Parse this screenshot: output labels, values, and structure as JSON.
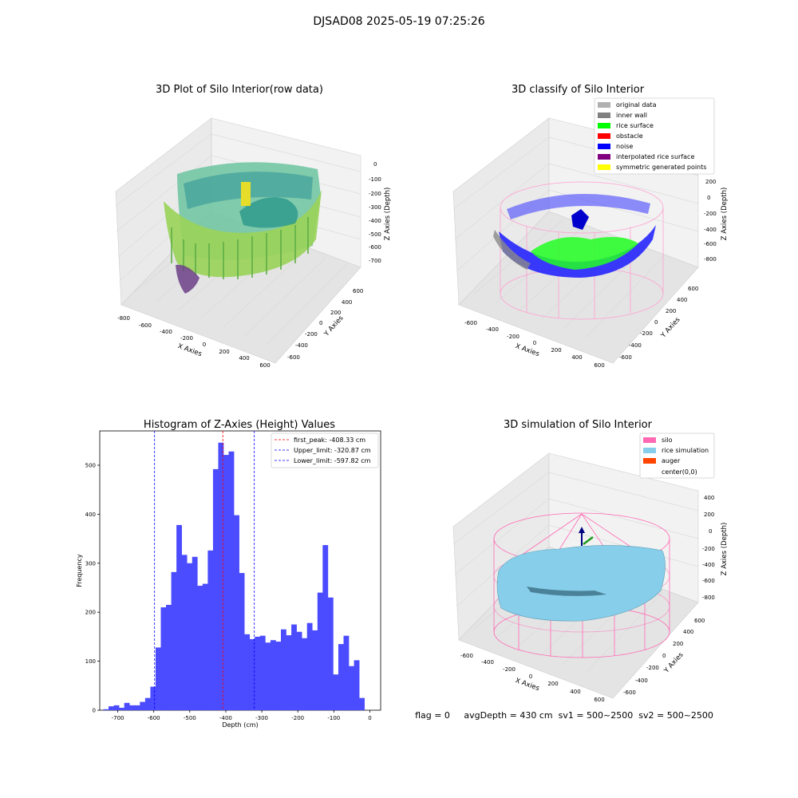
{
  "suptitle": "DJSAD08 2025-05-19 07:25:26",
  "status_line": "flag = 0     avgDepth = 430 cm  sv1 = 500~2500  sv2 = 500~2500",
  "colors": {
    "histogram_bar": "#4b4bff",
    "first_peak_line": "#ff0000",
    "limit_lines": "#0000ff",
    "silo_wire": "#ff69b4",
    "rice_simulation": "#87ceeb"
  },
  "panels": {
    "raw": {
      "title": "3D Plot of Silo Interior(row data)",
      "x_label": "X Axies",
      "y_label": "Y Axies",
      "z_label": "Z Axies (Depth)",
      "x_ticks": [
        "-800",
        "-600",
        "-400",
        "-200",
        "0",
        "200",
        "400",
        "600"
      ],
      "y_ticks": [
        "600",
        "400",
        "200",
        "0",
        "-200",
        "-400",
        "-600"
      ],
      "z_ticks": [
        "0",
        "-100",
        "-200",
        "-300",
        "-400",
        "-500",
        "-600",
        "-700"
      ],
      "colormap": "viridis"
    },
    "classify": {
      "title": "3D classify of Silo Interior",
      "x_label": "X Axies",
      "y_label": "Y Axies",
      "z_label": "Z Axies (Depth)",
      "x_ticks": [
        "-600",
        "-400",
        "-200",
        "0",
        "200",
        "400",
        "600"
      ],
      "y_ticks": [
        "600",
        "400",
        "200",
        "0",
        "-200",
        "-400",
        "-600"
      ],
      "z_ticks": [
        "200",
        "0",
        "-200",
        "-400",
        "-600",
        "-800"
      ],
      "legend": [
        {
          "label": "original data",
          "color": "#b0b0b0"
        },
        {
          "label": "inner wall",
          "color": "#808080"
        },
        {
          "label": "rice surface",
          "color": "#00ff00"
        },
        {
          "label": "obstacle",
          "color": "#ff0000"
        },
        {
          "label": "noise",
          "color": "#0000ff"
        },
        {
          "label": "interpolated rice surface",
          "color": "#800080"
        },
        {
          "label": "symmetric generated points",
          "color": "#ffff00"
        }
      ]
    },
    "simulation": {
      "title": "3D simulation of Silo Interior",
      "x_label": "X Axies",
      "y_label": "Y Axies",
      "z_label": "Z Axies (Depth)",
      "x_ticks": [
        "-600",
        "-400",
        "-200",
        "0",
        "200",
        "400",
        "600"
      ],
      "y_ticks": [
        "600",
        "400",
        "200",
        "0",
        "-200",
        "-400",
        "-600"
      ],
      "z_ticks": [
        "400",
        "200",
        "0",
        "-200",
        "-400",
        "-600",
        "-800"
      ],
      "legend": [
        {
          "label": "silo",
          "color": "#ff69b4"
        },
        {
          "label": "rice simulation",
          "color": "#87ceeb"
        },
        {
          "label": "auger",
          "color": "#ff4500"
        },
        {
          "label": "center(0,0)",
          "color": "#ffffff"
        }
      ]
    }
  },
  "chart_data": {
    "type": "bar",
    "title": "Histogram of Z-Axies (Height) Values",
    "xlabel": "Depth (cm)",
    "ylabel": "Frequency",
    "xlim": [
      -750,
      30
    ],
    "ylim": [
      0,
      570
    ],
    "x_ticks": [
      -700,
      -600,
      -500,
      -400,
      -300,
      -200,
      -100,
      0
    ],
    "y_ticks": [
      0,
      100,
      200,
      300,
      400,
      500
    ],
    "bin_width": 14.5,
    "bin_start": -740,
    "values": [
      2,
      8,
      10,
      5,
      15,
      10,
      10,
      17,
      25,
      48,
      128,
      210,
      215,
      282,
      378,
      317,
      300,
      313,
      254,
      258,
      326,
      492,
      546,
      521,
      528,
      398,
      280,
      155,
      145,
      150,
      152,
      138,
      143,
      140,
      165,
      153,
      175,
      160,
      147,
      178,
      163,
      240,
      337,
      230,
      73,
      135,
      152,
      90,
      102,
      25
    ],
    "lines": [
      {
        "x": -408.33,
        "label": "first_peak: -408.33 cm",
        "color": "#ff0000"
      },
      {
        "x": -320.87,
        "label": "Upper_limit: -320.87 cm",
        "color": "#0000ff"
      },
      {
        "x": -597.82,
        "label": "Lower_limit: -597.82 cm",
        "color": "#0000ff"
      }
    ],
    "legend_position": "upper right"
  }
}
